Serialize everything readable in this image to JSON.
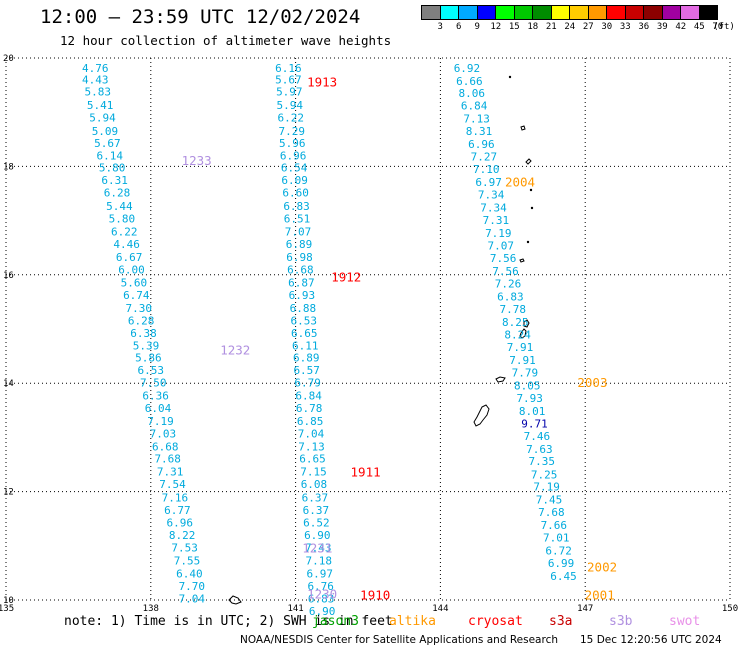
{
  "title": "12:00 – 23:59 UTC 12/02/2024",
  "subtitle": "12 hour collection of altimeter wave heights",
  "legend": {
    "unit": "(ft)",
    "bins": [
      {
        "label": "3",
        "color": "#7f7f7f"
      },
      {
        "label": "6",
        "color": "#00ffff"
      },
      {
        "label": "9",
        "color": "#00aaff"
      },
      {
        "label": "12",
        "color": "#0000ff"
      },
      {
        "label": "15",
        "color": "#00ff00"
      },
      {
        "label": "18",
        "color": "#00c800"
      },
      {
        "label": "21",
        "color": "#008c00"
      },
      {
        "label": "24",
        "color": "#ffff00"
      },
      {
        "label": "27",
        "color": "#ffcc00"
      },
      {
        "label": "30",
        "color": "#ff9900"
      },
      {
        "label": "33",
        "color": "#ff0000"
      },
      {
        "label": "36",
        "color": "#c80000"
      },
      {
        "label": "39",
        "color": "#8c0000"
      },
      {
        "label": "42",
        "color": "#a000a0"
      },
      {
        "label": "45",
        "color": "#e36be3"
      },
      {
        "label": "70",
        "color": "#000000"
      }
    ]
  },
  "note": {
    "text": "note: 1) Time is in UTC; 2) SWH is in feet",
    "satellites": [
      {
        "name": "jason3",
        "color": "#00a000"
      },
      {
        "name": "altika",
        "color": "#ff9900"
      },
      {
        "name": "cryosat",
        "color": "#ff0000"
      },
      {
        "name": "s3a",
        "color": "#c80000"
      },
      {
        "name": "s3b",
        "color": "#b090e0"
      },
      {
        "name": "swot",
        "color": "#e890e8"
      }
    ]
  },
  "credit": "NOAA/NESDIS Center for Satellite Applications and Research",
  "timestamp": "15 Dec 12:20:56 UTC 2024",
  "colors": {
    "wave_text": "#00aadd",
    "wave_high": "#0000aa"
  },
  "chart_data": {
    "type": "scatter",
    "xlim": [
      135,
      150
    ],
    "ylim": [
      10,
      20
    ],
    "xticks": [
      "135",
      "138",
      "141",
      "144",
      "147",
      "150"
    ],
    "yticks": [
      "10",
      "12",
      "14",
      "16",
      "18",
      "20"
    ],
    "grid": true,
    "tracks": [
      {
        "points": [
          {
            "lon": 136.85,
            "lat": 19.82,
            "v": "4.76"
          },
          {
            "lon": 136.85,
            "lat": 19.6,
            "v": "4.43"
          },
          {
            "lon": 136.9,
            "lat": 19.38,
            "v": "5.83"
          },
          {
            "lon": 136.95,
            "lat": 19.13,
            "v": "5.41"
          },
          {
            "lon": 137.0,
            "lat": 18.9,
            "v": "5.94"
          },
          {
            "lon": 137.05,
            "lat": 18.65,
            "v": "5.09"
          },
          {
            "lon": 137.1,
            "lat": 18.43,
            "v": "5.67"
          },
          {
            "lon": 137.15,
            "lat": 18.2,
            "v": "6.14"
          },
          {
            "lon": 137.2,
            "lat": 17.98,
            "v": "5.80"
          },
          {
            "lon": 137.25,
            "lat": 17.75,
            "v": "6.31"
          },
          {
            "lon": 137.3,
            "lat": 17.52,
            "v": "6.28"
          },
          {
            "lon": 137.35,
            "lat": 17.27,
            "v": "5.44"
          },
          {
            "lon": 137.4,
            "lat": 17.04,
            "v": "5.80"
          },
          {
            "lon": 137.45,
            "lat": 16.8,
            "v": "6.22"
          },
          {
            "lon": 137.5,
            "lat": 16.57,
            "v": "4.46"
          },
          {
            "lon": 137.55,
            "lat": 16.33,
            "v": "6.67"
          },
          {
            "lon": 137.6,
            "lat": 16.1,
            "v": "6.00"
          },
          {
            "lon": 137.65,
            "lat": 15.86,
            "v": "5.60"
          },
          {
            "lon": 137.7,
            "lat": 15.63,
            "v": "6.74"
          },
          {
            "lon": 137.75,
            "lat": 15.39,
            "v": "7.30"
          },
          {
            "lon": 137.8,
            "lat": 15.16,
            "v": "6.28"
          },
          {
            "lon": 137.85,
            "lat": 14.93,
            "v": "6.38"
          },
          {
            "lon": 137.9,
            "lat": 14.7,
            "v": "5.39"
          },
          {
            "lon": 137.95,
            "lat": 14.47,
            "v": "5.86"
          },
          {
            "lon": 138.0,
            "lat": 14.24,
            "v": "6.53"
          },
          {
            "lon": 138.05,
            "lat": 14.01,
            "v": "7.50"
          },
          {
            "lon": 138.1,
            "lat": 13.77,
            "v": "6.36"
          },
          {
            "lon": 138.15,
            "lat": 13.54,
            "v": "6.04"
          },
          {
            "lon": 138.2,
            "lat": 13.3,
            "v": "7.19"
          },
          {
            "lon": 138.25,
            "lat": 13.07,
            "v": "7.03"
          },
          {
            "lon": 138.3,
            "lat": 12.83,
            "v": "6.68"
          },
          {
            "lon": 138.35,
            "lat": 12.61,
            "v": "7.68"
          },
          {
            "lon": 138.4,
            "lat": 12.37,
            "v": "7.31"
          },
          {
            "lon": 138.45,
            "lat": 12.14,
            "v": "7.54"
          },
          {
            "lon": 138.5,
            "lat": 11.89,
            "v": "7.16"
          },
          {
            "lon": 138.55,
            "lat": 11.66,
            "v": "6.77"
          },
          {
            "lon": 138.6,
            "lat": 11.43,
            "v": "6.96"
          },
          {
            "lon": 138.65,
            "lat": 11.2,
            "v": "8.22"
          },
          {
            "lon": 138.7,
            "lat": 10.97,
            "v": "7.53"
          },
          {
            "lon": 138.75,
            "lat": 10.73,
            "v": "7.55"
          },
          {
            "lon": 138.8,
            "lat": 10.49,
            "v": "6.40"
          },
          {
            "lon": 138.85,
            "lat": 10.26,
            "v": "7.70"
          },
          {
            "lon": 138.85,
            "lat": 10.03,
            "v": "7.04"
          }
        ]
      },
      {
        "points": [
          {
            "lon": 140.85,
            "lat": 19.82,
            "v": "6.16"
          },
          {
            "lon": 140.85,
            "lat": 19.6,
            "v": "5.67"
          },
          {
            "lon": 140.87,
            "lat": 19.38,
            "v": "5.97"
          },
          {
            "lon": 140.88,
            "lat": 19.13,
            "v": "5.94"
          },
          {
            "lon": 140.9,
            "lat": 18.9,
            "v": "6.22"
          },
          {
            "lon": 140.92,
            "lat": 18.65,
            "v": "7.29"
          },
          {
            "lon": 140.93,
            "lat": 18.43,
            "v": "5.96"
          },
          {
            "lon": 140.95,
            "lat": 18.2,
            "v": "6.96"
          },
          {
            "lon": 140.97,
            "lat": 17.98,
            "v": "6.54"
          },
          {
            "lon": 140.98,
            "lat": 17.75,
            "v": "6.09"
          },
          {
            "lon": 141.0,
            "lat": 17.52,
            "v": "6.60"
          },
          {
            "lon": 141.02,
            "lat": 17.27,
            "v": "6.83"
          },
          {
            "lon": 141.03,
            "lat": 17.04,
            "v": "6.51"
          },
          {
            "lon": 141.05,
            "lat": 16.8,
            "v": "7.07"
          },
          {
            "lon": 141.07,
            "lat": 16.57,
            "v": "6.89"
          },
          {
            "lon": 141.08,
            "lat": 16.33,
            "v": "6.98"
          },
          {
            "lon": 141.1,
            "lat": 16.1,
            "v": "6.68"
          },
          {
            "lon": 141.12,
            "lat": 15.86,
            "v": "6.87"
          },
          {
            "lon": 141.13,
            "lat": 15.63,
            "v": "6.93"
          },
          {
            "lon": 141.15,
            "lat": 15.39,
            "v": "6.88"
          },
          {
            "lon": 141.17,
            "lat": 15.16,
            "v": "6.53"
          },
          {
            "lon": 141.18,
            "lat": 14.93,
            "v": "6.65"
          },
          {
            "lon": 141.2,
            "lat": 14.7,
            "v": "6.11"
          },
          {
            "lon": 141.22,
            "lat": 14.47,
            "v": "6.89"
          },
          {
            "lon": 141.23,
            "lat": 14.24,
            "v": "6.57"
          },
          {
            "lon": 141.25,
            "lat": 14.01,
            "v": "6.79"
          },
          {
            "lon": 141.27,
            "lat": 13.77,
            "v": "6.84"
          },
          {
            "lon": 141.28,
            "lat": 13.54,
            "v": "6.78"
          },
          {
            "lon": 141.3,
            "lat": 13.3,
            "v": "6.85"
          },
          {
            "lon": 141.32,
            "lat": 13.07,
            "v": "7.04"
          },
          {
            "lon": 141.33,
            "lat": 12.83,
            "v": "7.13"
          },
          {
            "lon": 141.35,
            "lat": 12.61,
            "v": "6.65"
          },
          {
            "lon": 141.37,
            "lat": 12.37,
            "v": "7.15"
          },
          {
            "lon": 141.38,
            "lat": 12.14,
            "v": "6.08"
          },
          {
            "lon": 141.4,
            "lat": 11.89,
            "v": "6.37"
          },
          {
            "lon": 141.42,
            "lat": 11.66,
            "v": "6.37"
          },
          {
            "lon": 141.43,
            "lat": 11.43,
            "v": "6.52"
          },
          {
            "lon": 141.45,
            "lat": 11.2,
            "v": "6.90"
          },
          {
            "lon": 141.47,
            "lat": 10.97,
            "v": "7.43"
          },
          {
            "lon": 141.48,
            "lat": 10.73,
            "v": "7.18"
          },
          {
            "lon": 141.5,
            "lat": 10.49,
            "v": "6.97"
          },
          {
            "lon": 141.52,
            "lat": 10.26,
            "v": "6.76"
          },
          {
            "lon": 141.53,
            "lat": 10.03,
            "v": "6.83"
          },
          {
            "lon": 141.55,
            "lat": 9.8,
            "v": "6.90"
          }
        ]
      },
      {
        "points": [
          {
            "lon": 144.55,
            "lat": 19.82,
            "v": "6.92"
          },
          {
            "lon": 144.6,
            "lat": 19.58,
            "v": "6.66"
          },
          {
            "lon": 144.65,
            "lat": 19.35,
            "v": "8.06"
          },
          {
            "lon": 144.7,
            "lat": 19.12,
            "v": "6.84"
          },
          {
            "lon": 144.75,
            "lat": 18.88,
            "v": "7.13"
          },
          {
            "lon": 144.8,
            "lat": 18.65,
            "v": "8.31"
          },
          {
            "lon": 144.85,
            "lat": 18.41,
            "v": "6.96"
          },
          {
            "lon": 144.9,
            "lat": 18.18,
            "v": "7.27"
          },
          {
            "lon": 144.95,
            "lat": 17.95,
            "v": "7.10"
          },
          {
            "lon": 145.0,
            "lat": 17.71,
            "v": "6.97"
          },
          {
            "lon": 145.05,
            "lat": 17.48,
            "v": "7.34"
          },
          {
            "lon": 145.1,
            "lat": 17.24,
            "v": "7.34"
          },
          {
            "lon": 145.15,
            "lat": 17.01,
            "v": "7.31"
          },
          {
            "lon": 145.2,
            "lat": 16.77,
            "v": "7.19"
          },
          {
            "lon": 145.25,
            "lat": 16.54,
            "v": "7.07"
          },
          {
            "lon": 145.3,
            "lat": 16.31,
            "v": "7.56"
          },
          {
            "lon": 145.35,
            "lat": 16.07,
            "v": "7.56"
          },
          {
            "lon": 145.4,
            "lat": 15.84,
            "v": "7.26"
          },
          {
            "lon": 145.45,
            "lat": 15.6,
            "v": "6.83"
          },
          {
            "lon": 145.5,
            "lat": 15.37,
            "v": "7.78"
          },
          {
            "lon": 145.55,
            "lat": 15.13,
            "v": "8.25"
          },
          {
            "lon": 145.6,
            "lat": 14.9,
            "v": "8.24"
          },
          {
            "lon": 145.65,
            "lat": 14.67,
            "v": "7.91"
          },
          {
            "lon": 145.7,
            "lat": 14.43,
            "v": "7.91"
          },
          {
            "lon": 145.75,
            "lat": 14.2,
            "v": "7.79"
          },
          {
            "lon": 145.8,
            "lat": 13.96,
            "v": "8.05"
          },
          {
            "lon": 145.85,
            "lat": 13.73,
            "v": "7.93"
          },
          {
            "lon": 145.9,
            "lat": 13.49,
            "v": "8.01"
          },
          {
            "lon": 145.95,
            "lat": 13.26,
            "v": "9.71",
            "high": true
          },
          {
            "lon": 146.0,
            "lat": 13.03,
            "v": "7.46"
          },
          {
            "lon": 146.05,
            "lat": 12.79,
            "v": "7.63"
          },
          {
            "lon": 146.1,
            "lat": 12.56,
            "v": "7.35"
          },
          {
            "lon": 146.15,
            "lat": 12.32,
            "v": "7.25"
          },
          {
            "lon": 146.2,
            "lat": 12.09,
            "v": "7.19"
          },
          {
            "lon": 146.25,
            "lat": 11.85,
            "v": "7.45"
          },
          {
            "lon": 146.3,
            "lat": 11.62,
            "v": "7.68"
          },
          {
            "lon": 146.35,
            "lat": 11.38,
            "v": "7.66"
          },
          {
            "lon": 146.4,
            "lat": 11.15,
            "v": "7.01"
          },
          {
            "lon": 146.45,
            "lat": 10.91,
            "v": "6.72"
          },
          {
            "lon": 146.5,
            "lat": 10.68,
            "v": "6.99"
          },
          {
            "lon": 146.55,
            "lat": 10.44,
            "v": "6.45"
          }
        ]
      }
    ],
    "time_labels": [
      {
        "lon": 141.55,
        "lat": 19.55,
        "t": "1913",
        "color": "#ff0000"
      },
      {
        "lon": 138.95,
        "lat": 18.1,
        "t": "1233",
        "color": "#b090e0"
      },
      {
        "lon": 145.65,
        "lat": 17.7,
        "t": "2004",
        "color": "#ff9900"
      },
      {
        "lon": 142.05,
        "lat": 15.95,
        "t": "1912",
        "color": "#ff0000"
      },
      {
        "lon": 139.75,
        "lat": 14.6,
        "t": "1232",
        "color": "#b090e0"
      },
      {
        "lon": 147.15,
        "lat": 14.0,
        "t": "2003",
        "color": "#ff9900"
      },
      {
        "lon": 142.45,
        "lat": 12.35,
        "t": "1911",
        "color": "#ff0000"
      },
      {
        "lon": 141.45,
        "lat": 10.95,
        "t": "1231",
        "color": "#b090e0"
      },
      {
        "lon": 147.35,
        "lat": 10.6,
        "t": "2002",
        "color": "#ff9900"
      },
      {
        "lon": 147.3,
        "lat": 10.08,
        "t": "2001",
        "color": "#ff9900"
      },
      {
        "lon": 142.65,
        "lat": 10.08,
        "t": "1910",
        "color": "#ff0000"
      },
      {
        "lon": 141.55,
        "lat": 10.1,
        "t": "1230",
        "color": "#b090e0"
      }
    ]
  }
}
